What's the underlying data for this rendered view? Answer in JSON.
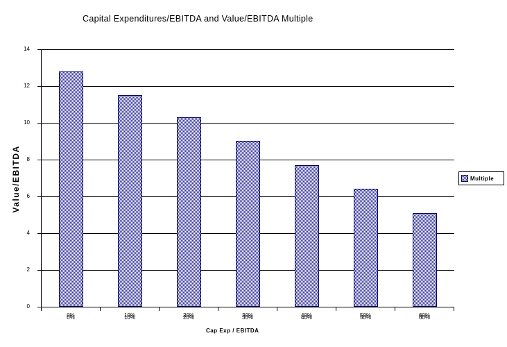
{
  "page": {
    "background": "#ffffff"
  },
  "chart_data": {
    "type": "bar",
    "title": "Capital Expenditures/EBITDA and Value/EBITDA Multiple",
    "categories": [
      "0%",
      "10%",
      "20%",
      "30%",
      "40%",
      "50%",
      "60%"
    ],
    "series": [
      {
        "name": "Multiple",
        "values": [
          12.8,
          11.5,
          10.3,
          9.0,
          7.7,
          6.4,
          5.1
        ]
      }
    ],
    "xlabel": "Cap Exp / EBITDA",
    "ylabel": "Value/EBITDA",
    "ylim": [
      0,
      14
    ],
    "yticks": [
      0,
      2,
      4,
      6,
      8,
      10,
      12,
      14
    ],
    "grid": true,
    "legend": {
      "position": "right",
      "entries": [
        "Multiple"
      ]
    },
    "colors": {
      "bar_pattern_fg": "#333399",
      "bar_pattern_bg": "#ffffff",
      "bar_border": "#000066",
      "axis": "#000000",
      "gridline": "#000000",
      "text": "#000000",
      "legend_border": "#000000"
    }
  }
}
